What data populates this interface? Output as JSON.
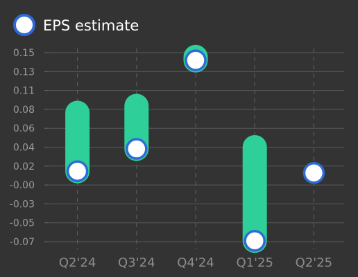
{
  "chart_data": {
    "type": "bar",
    "subtype": "range-bar-with-markers",
    "categories": [
      "Q2'24",
      "Q3'24",
      "Q4'24",
      "Q1'25",
      "Q2'25"
    ],
    "series": [
      {
        "name": "EPS estimate",
        "values": [
          0.012,
          0.038,
          0.141,
          -0.069,
          0.01
        ]
      },
      {
        "values": [
          0.08,
          0.088,
          0.145,
          0.04,
          null
        ]
      }
    ],
    "yticks": [
      "0.15",
      "0.13",
      "0.11",
      "0.08",
      "0.06",
      "0.04",
      "0.02",
      "-0.00",
      "-0.03",
      "-0.05",
      "-0.07"
    ],
    "ylim": [
      -0.07,
      0.15
    ],
    "grid": true,
    "legend": "top-left"
  },
  "colors": {
    "background": "#333333",
    "bar": "#2ecf98",
    "marker_fill": "#ffffff",
    "marker_stroke": "#2f6bd6",
    "grid": "#5a5a5a",
    "axis": "#6a6a6a"
  }
}
